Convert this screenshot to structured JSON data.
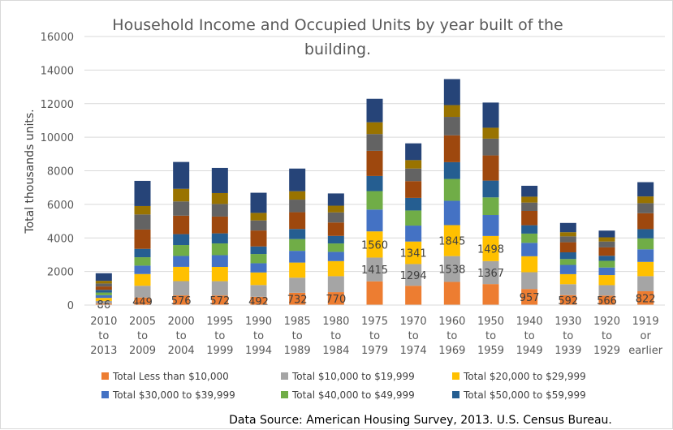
{
  "chart_data": {
    "type": "bar",
    "stacked": true,
    "title_line1": "Household Income and Occupied Units  by year built of the",
    "title_line2": "building.",
    "xlabel": "",
    "ylabel": "Total thousands units.",
    "ylim": [
      0,
      16000
    ],
    "yticks": [
      "0",
      "2000",
      "4000",
      "6000",
      "8000",
      "10000",
      "12000",
      "14000",
      "16000"
    ],
    "grid": true,
    "legend_position": "bottom",
    "source": "Data Source: American Housing Survey, 2013. U.S. Census Bureau.",
    "categories": [
      [
        "2010",
        "to",
        "2013"
      ],
      [
        "2005",
        "to",
        "2009"
      ],
      [
        "2000",
        "to",
        "2004"
      ],
      [
        "1995",
        "to",
        "1999"
      ],
      [
        "1990",
        "to",
        "1994"
      ],
      [
        "1985",
        "to",
        "1989"
      ],
      [
        "1980",
        "to",
        "1984"
      ],
      [
        "1975",
        "to",
        "1979"
      ],
      [
        "1970",
        "to",
        "1974"
      ],
      [
        "1960",
        "to",
        "1969"
      ],
      [
        "1950",
        "to",
        "1959"
      ],
      [
        "1940",
        "to",
        "1949"
      ],
      [
        "1930",
        "to",
        "1939"
      ],
      [
        "1920",
        "to",
        "1929"
      ],
      [
        "1919",
        "or",
        "earlier"
      ]
    ],
    "series": [
      {
        "name": "Total Less than $10,000",
        "color": "#ED7D31",
        "legend": true,
        "values": [
          86,
          449,
          576,
          572,
          492,
          732,
          770,
          1415,
          1150,
          1380,
          1250,
          957,
          592,
          566,
          822
        ],
        "labels": [
          "86",
          "449",
          "576",
          "572",
          "492",
          "732",
          "770",
          "",
          "",
          "",
          "",
          "957",
          "592",
          "566",
          "822"
        ]
      },
      {
        "name": "Total $10,000 to $19,999",
        "color": "#A5A5A5",
        "legend": true,
        "values": [
          160,
          700,
          850,
          850,
          700,
          900,
          950,
          1415,
          1294,
          1538,
          1367,
          1000,
          650,
          620,
          900
        ],
        "labels": [
          "",
          "",
          "",
          "",
          "",
          "",
          "",
          "1415",
          "1294",
          "1538",
          "1367",
          "",
          "",
          "",
          ""
        ]
      },
      {
        "name": "Total $20,000 to $29,999",
        "color": "#FFC000",
        "legend": true,
        "values": [
          180,
          700,
          850,
          850,
          750,
          900,
          900,
          1560,
          1341,
          1845,
          1498,
          950,
          600,
          600,
          850
        ],
        "labels": [
          "",
          "",
          "",
          "",
          "",
          "",
          "",
          "1560",
          "1341",
          "1845",
          "1498",
          "",
          "",
          "",
          ""
        ]
      },
      {
        "name": "Total $30,000 to $39,999",
        "color": "#4472C4",
        "legend": true,
        "values": [
          160,
          500,
          650,
          700,
          550,
          700,
          550,
          1300,
          950,
          1450,
          1250,
          800,
          550,
          450,
          750
        ],
        "labels": [
          "",
          "",
          "",
          "",
          "",
          "",
          "",
          "",
          "",
          "",
          "",
          "",
          "",
          "",
          ""
        ]
      },
      {
        "name": "Total $40,000 to $49,999",
        "color": "#70AD47",
        "legend": true,
        "values": [
          160,
          500,
          650,
          700,
          550,
          700,
          500,
          1100,
          900,
          1300,
          1050,
          550,
          350,
          400,
          650
        ],
        "labels": [
          "",
          "",
          "",
          "",
          "",
          "",
          "",
          "",
          "",
          "",
          "",
          "",
          "",
          "",
          ""
        ]
      },
      {
        "name": "Total $50,000 to $59,999",
        "color": "#255E91",
        "legend": true,
        "values": [
          160,
          500,
          650,
          600,
          450,
          600,
          450,
          900,
          750,
          1000,
          1000,
          500,
          400,
          300,
          550
        ],
        "labels": [
          "",
          "",
          "",
          "",
          "",
          "",
          "",
          "",
          "",
          "",
          "",
          "",
          "",
          "",
          ""
        ]
      },
      {
        "name": "",
        "color": "#9E480E",
        "legend": false,
        "values": [
          200,
          1150,
          1100,
          1000,
          950,
          1000,
          800,
          1500,
          1000,
          1600,
          1500,
          850,
          600,
          500,
          950
        ],
        "labels": [
          "",
          "",
          "",
          "",
          "",
          "",
          "",
          "",
          "",
          "",
          "",
          "",
          "",
          "",
          ""
        ]
      },
      {
        "name": "",
        "color": "#636363",
        "legend": false,
        "values": [
          180,
          900,
          850,
          750,
          600,
          750,
          600,
          1000,
          750,
          1100,
          1000,
          500,
          350,
          350,
          600
        ],
        "labels": [
          "",
          "",
          "",
          "",
          "",
          "",
          "",
          "",
          "",
          "",
          "",
          "",
          "",
          "",
          ""
        ]
      },
      {
        "name": "",
        "color": "#997300",
        "legend": false,
        "values": [
          160,
          500,
          750,
          650,
          450,
          500,
          400,
          700,
          500,
          700,
          650,
          350,
          250,
          250,
          400
        ],
        "labels": [
          "",
          "",
          "",
          "",
          "",
          "",
          "",
          "",
          "",
          "",
          "",
          "",
          "",
          "",
          ""
        ]
      },
      {
        "name": "",
        "color": "#264478",
        "legend": false,
        "values": [
          450,
          1500,
          1600,
          1500,
          1200,
          1350,
          730,
          1400,
          1000,
          1550,
          1500,
          650,
          550,
          400,
          850
        ],
        "labels": [
          "",
          "",
          "",
          "",
          "",
          "",
          "",
          "",
          "",
          "",
          "",
          "",
          "",
          "",
          ""
        ]
      }
    ]
  }
}
